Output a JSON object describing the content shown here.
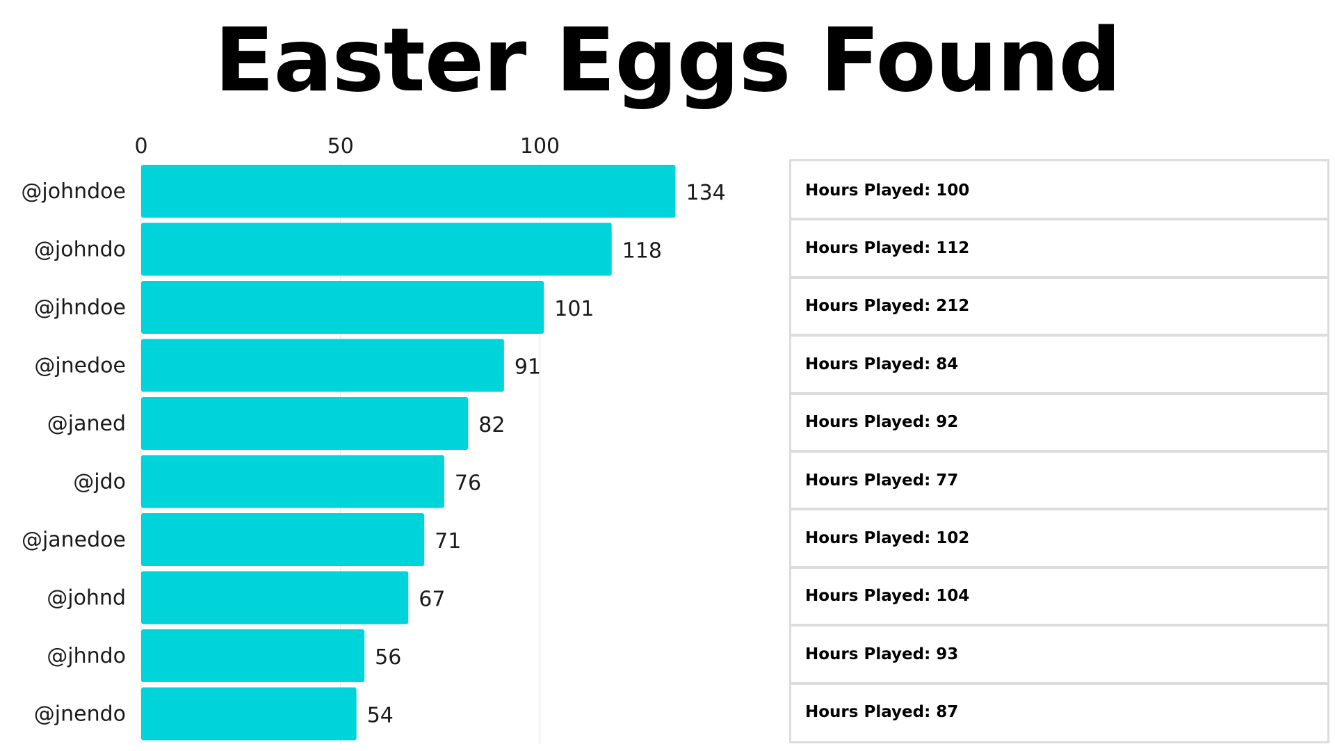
{
  "title": "Easter Eggs Found",
  "chart_data": {
    "type": "bar",
    "orientation": "horizontal",
    "title": "Easter Eggs Found",
    "categories": [
      "@johndoe",
      "@johndo",
      "@jhndoe",
      "@jnedoe",
      "@janed",
      "@jdo",
      "@janedoe",
      "@johnd",
      "@jhndo",
      "@jnendo"
    ],
    "values": [
      134,
      118,
      101,
      91,
      82,
      76,
      71,
      67,
      56,
      54
    ],
    "xticks": [
      0,
      50,
      100
    ],
    "xlim": [
      0,
      134
    ],
    "xaxis_position": "top",
    "grid": true,
    "bar_color": "#00d4db",
    "grid_color": "#ececec"
  },
  "stats_panel": {
    "rows": [
      "Hours Played: 100",
      "Hours Played: 112",
      "Hours Played: 212",
      "Hours Played: 84",
      "Hours Played: 92",
      "Hours Played: 77",
      "Hours Played: 102",
      "Hours Played: 104",
      "Hours Played: 93",
      "Hours Played: 87"
    ],
    "border_color": "#dcdcdc"
  }
}
